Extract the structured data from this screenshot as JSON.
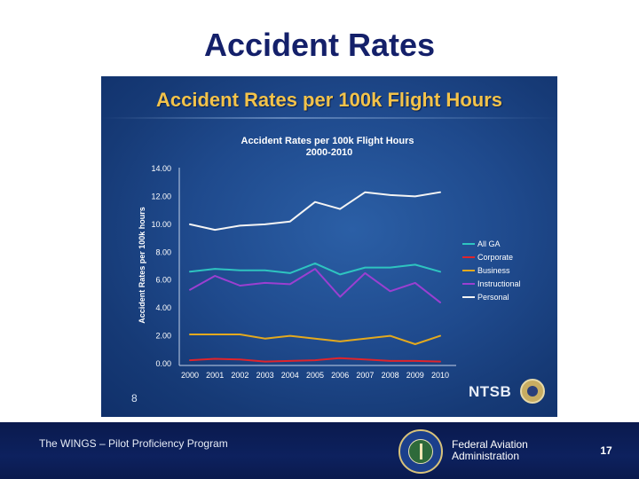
{
  "slide": {
    "title": "Accident Rates",
    "footer_program": "The WINGS – Pilot Proficiency Program",
    "faa_name_line1": "Federal Aviation",
    "faa_name_line2": "Administration",
    "page_number": "17"
  },
  "panel": {
    "heading": "Accident Rates per 100k Flight Hours",
    "slide_number": "8",
    "logo_text": "NTSB"
  },
  "chart_data": {
    "type": "line",
    "title": "Accident Rates per 100k Flight Hours",
    "subtitle": "2000-2010",
    "xlabel": "",
    "ylabel": "Accident Rates per 100k hours",
    "x": [
      2000,
      2001,
      2002,
      2003,
      2004,
      2005,
      2006,
      2007,
      2008,
      2009,
      2010
    ],
    "x_tick_labels": [
      "2000",
      "2001",
      "2002",
      "2003",
      "2004",
      "2005",
      "2006",
      "2007",
      "2008",
      "2009",
      "2010"
    ],
    "y_tick_labels": [
      "0.00",
      "2.00",
      "4.00",
      "6.00",
      "8.00",
      "10.00",
      "12.00",
      "14.00"
    ],
    "ylim": [
      0,
      14
    ],
    "grid": false,
    "legend_position": "right",
    "series": [
      {
        "name": "All GA",
        "color": "#2ec4c0",
        "values": [
          6.6,
          6.8,
          6.7,
          6.7,
          6.5,
          7.2,
          6.4,
          6.9,
          6.9,
          7.1,
          6.6
        ]
      },
      {
        "name": "Corporate",
        "color": "#e0242b",
        "values": [
          0.25,
          0.35,
          0.3,
          0.15,
          0.2,
          0.25,
          0.4,
          0.3,
          0.2,
          0.2,
          0.15
        ]
      },
      {
        "name": "Business",
        "color": "#e3a91e",
        "values": [
          2.1,
          2.1,
          2.1,
          1.8,
          2.0,
          1.8,
          1.6,
          1.8,
          2.0,
          1.4,
          2.0
        ]
      },
      {
        "name": "Instructional",
        "color": "#9b3fd1",
        "values": [
          5.3,
          6.3,
          5.6,
          5.8,
          5.7,
          6.8,
          4.8,
          6.5,
          5.2,
          5.8,
          4.4
        ]
      },
      {
        "name": "Personal",
        "color": "#f4f4f4",
        "values": [
          10.0,
          9.6,
          9.9,
          10.0,
          10.2,
          11.6,
          11.1,
          12.3,
          12.1,
          12.0,
          12.3
        ]
      }
    ]
  }
}
